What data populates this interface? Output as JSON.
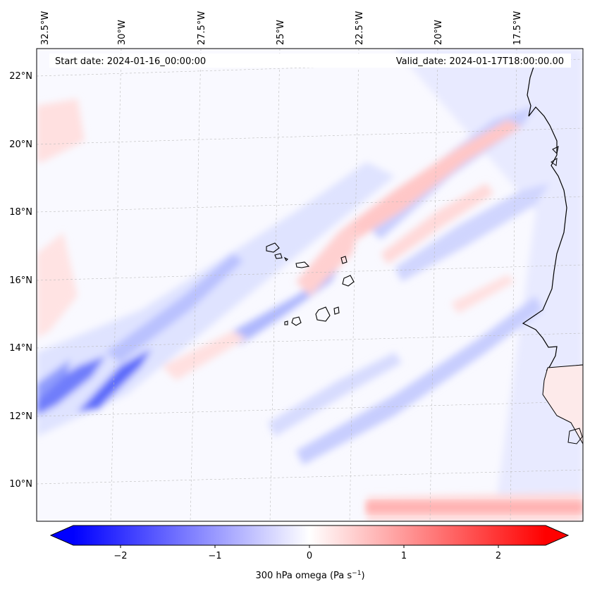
{
  "header": {
    "start_label": "Start date: 2024-01-16_00:00:00",
    "valid_label": "Valid_date: 2024-01-17T18:00:00.00"
  },
  "map": {
    "lon_labels": [
      "32.5°W",
      "30°W",
      "27.5°W",
      "25°W",
      "22.5°W",
      "20°W",
      "17.5°W"
    ],
    "lat_labels": [
      "22°N",
      "20°N",
      "18°N",
      "16°N",
      "14°N",
      "12°N",
      "10°N"
    ]
  },
  "colorbar": {
    "ticks": [
      {
        "label": "−2",
        "value": -2
      },
      {
        "label": "−1",
        "value": -1
      },
      {
        "label": "0",
        "value": 0
      },
      {
        "label": "1",
        "value": 1
      },
      {
        "label": "2",
        "value": 2
      }
    ],
    "range": [
      -2.5,
      2.5
    ],
    "label_prefix": "300 hPa omega (Pa s",
    "label_exp": "−1",
    "label_suffix": ")",
    "color_min": "#0000ff",
    "color_mid": "#ffffff",
    "color_max": "#ff0000"
  }
}
